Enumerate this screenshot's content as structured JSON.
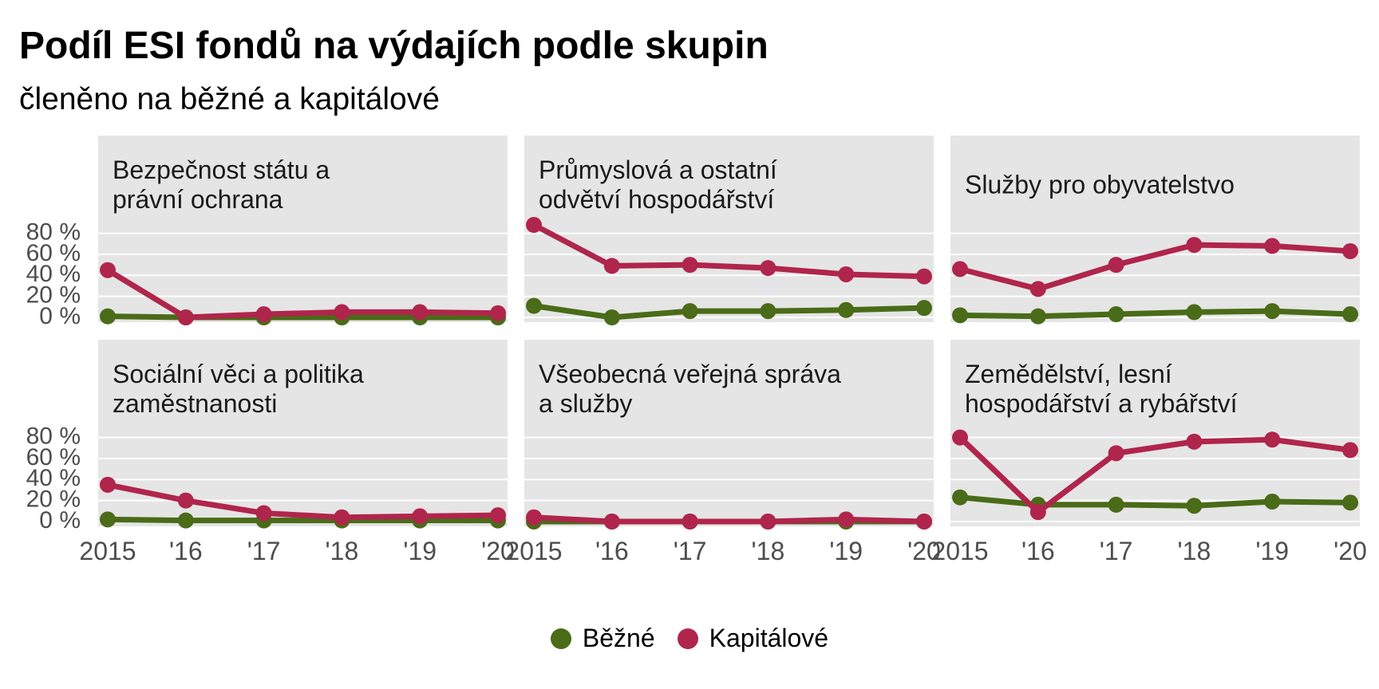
{
  "chart_data": {
    "type": "line",
    "title": "Podíl ESI fondů na výdajích podle skupin",
    "subtitle": "členěno na běžné a kapitálové",
    "x": [
      2015,
      2016,
      2017,
      2018,
      2019,
      2020
    ],
    "x_tick_labels": [
      "2015",
      "'16",
      "'17",
      "'18",
      "'19",
      "'20"
    ],
    "y_ticks": [
      "0 %",
      "20 %",
      "40 %",
      "60 %",
      "80 %"
    ],
    "ylim": [
      0,
      85
    ],
    "grid": true,
    "legend_position": "bottom",
    "legend": [
      {
        "label": "Běžné",
        "color": "#4a6b18"
      },
      {
        "label": "Kapitálové",
        "color": "#b0254c"
      }
    ],
    "panels": [
      {
        "title_lines": [
          "Bezpečnost státu a",
          "právní ochrana"
        ],
        "series": [
          {
            "name": "Běžné",
            "values": [
              1,
              0,
              0,
              0,
              0,
              0
            ]
          },
          {
            "name": "Kapitálové",
            "values": [
              45,
              0,
              3,
              5,
              5,
              4
            ]
          }
        ]
      },
      {
        "title_lines": [
          "Průmyslová a ostatní",
          "odvětví hospodářství"
        ],
        "series": [
          {
            "name": "Běžné",
            "values": [
              11,
              0,
              6,
              6,
              7,
              9
            ]
          },
          {
            "name": "Kapitálové",
            "values": [
              88,
              49,
              50,
              47,
              41,
              39
            ]
          }
        ]
      },
      {
        "title_lines": [
          "Služby pro obyvatelstvo"
        ],
        "series": [
          {
            "name": "Běžné",
            "values": [
              2,
              1,
              3,
              5,
              6,
              3
            ]
          },
          {
            "name": "Kapitálové",
            "values": [
              46,
              27,
              50,
              69,
              68,
              63
            ]
          }
        ]
      },
      {
        "title_lines": [
          "Sociální věci a politika",
          "zaměstnanosti"
        ],
        "series": [
          {
            "name": "Běžné",
            "values": [
              2,
              1,
              1,
              1,
              1,
              1
            ]
          },
          {
            "name": "Kapitálové",
            "values": [
              35,
              20,
              8,
              4,
              5,
              6
            ]
          }
        ]
      },
      {
        "title_lines": [
          "Všeobecná veřejná správa",
          "a služby"
        ],
        "series": [
          {
            "name": "Běžné",
            "values": [
              0,
              0,
              0,
              0,
              0,
              0
            ]
          },
          {
            "name": "Kapitálové",
            "values": [
              4,
              0,
              0,
              0,
              2,
              0
            ]
          }
        ]
      },
      {
        "title_lines": [
          "Zemědělství, lesní",
          "hospodářství a rybářství"
        ],
        "series": [
          {
            "name": "Běžné",
            "values": [
              23,
              16,
              16,
              15,
              19,
              18
            ]
          },
          {
            "name": "Kapitálové",
            "values": [
              80,
              9,
              65,
              76,
              78,
              68
            ]
          }
        ]
      }
    ]
  }
}
